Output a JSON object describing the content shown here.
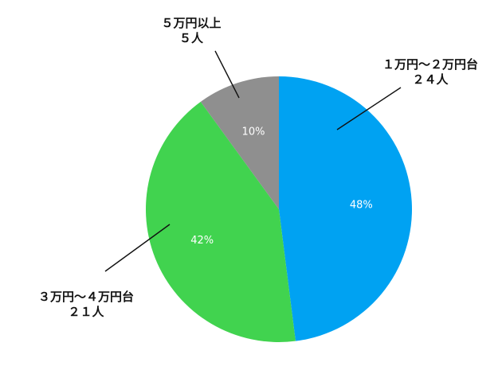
{
  "chart_data": {
    "type": "pie",
    "start_angle_deg": 0,
    "direction": "clockwise",
    "slices": [
      {
        "percent_label": "48%",
        "value": 48,
        "label_line1": "１万円〜２万円台",
        "label_line2": "２４人",
        "count": 24,
        "color": "#00a2f2"
      },
      {
        "percent_label": "42%",
        "value": 42,
        "label_line1": "３万円〜４万円台",
        "label_line2": "２１人",
        "count": 21,
        "color": "#41d34f"
      },
      {
        "percent_label": "10%",
        "value": 10,
        "label_line1": "５万円以上",
        "label_line2": "５人",
        "count": 5,
        "color": "#8f8f8f"
      }
    ]
  }
}
